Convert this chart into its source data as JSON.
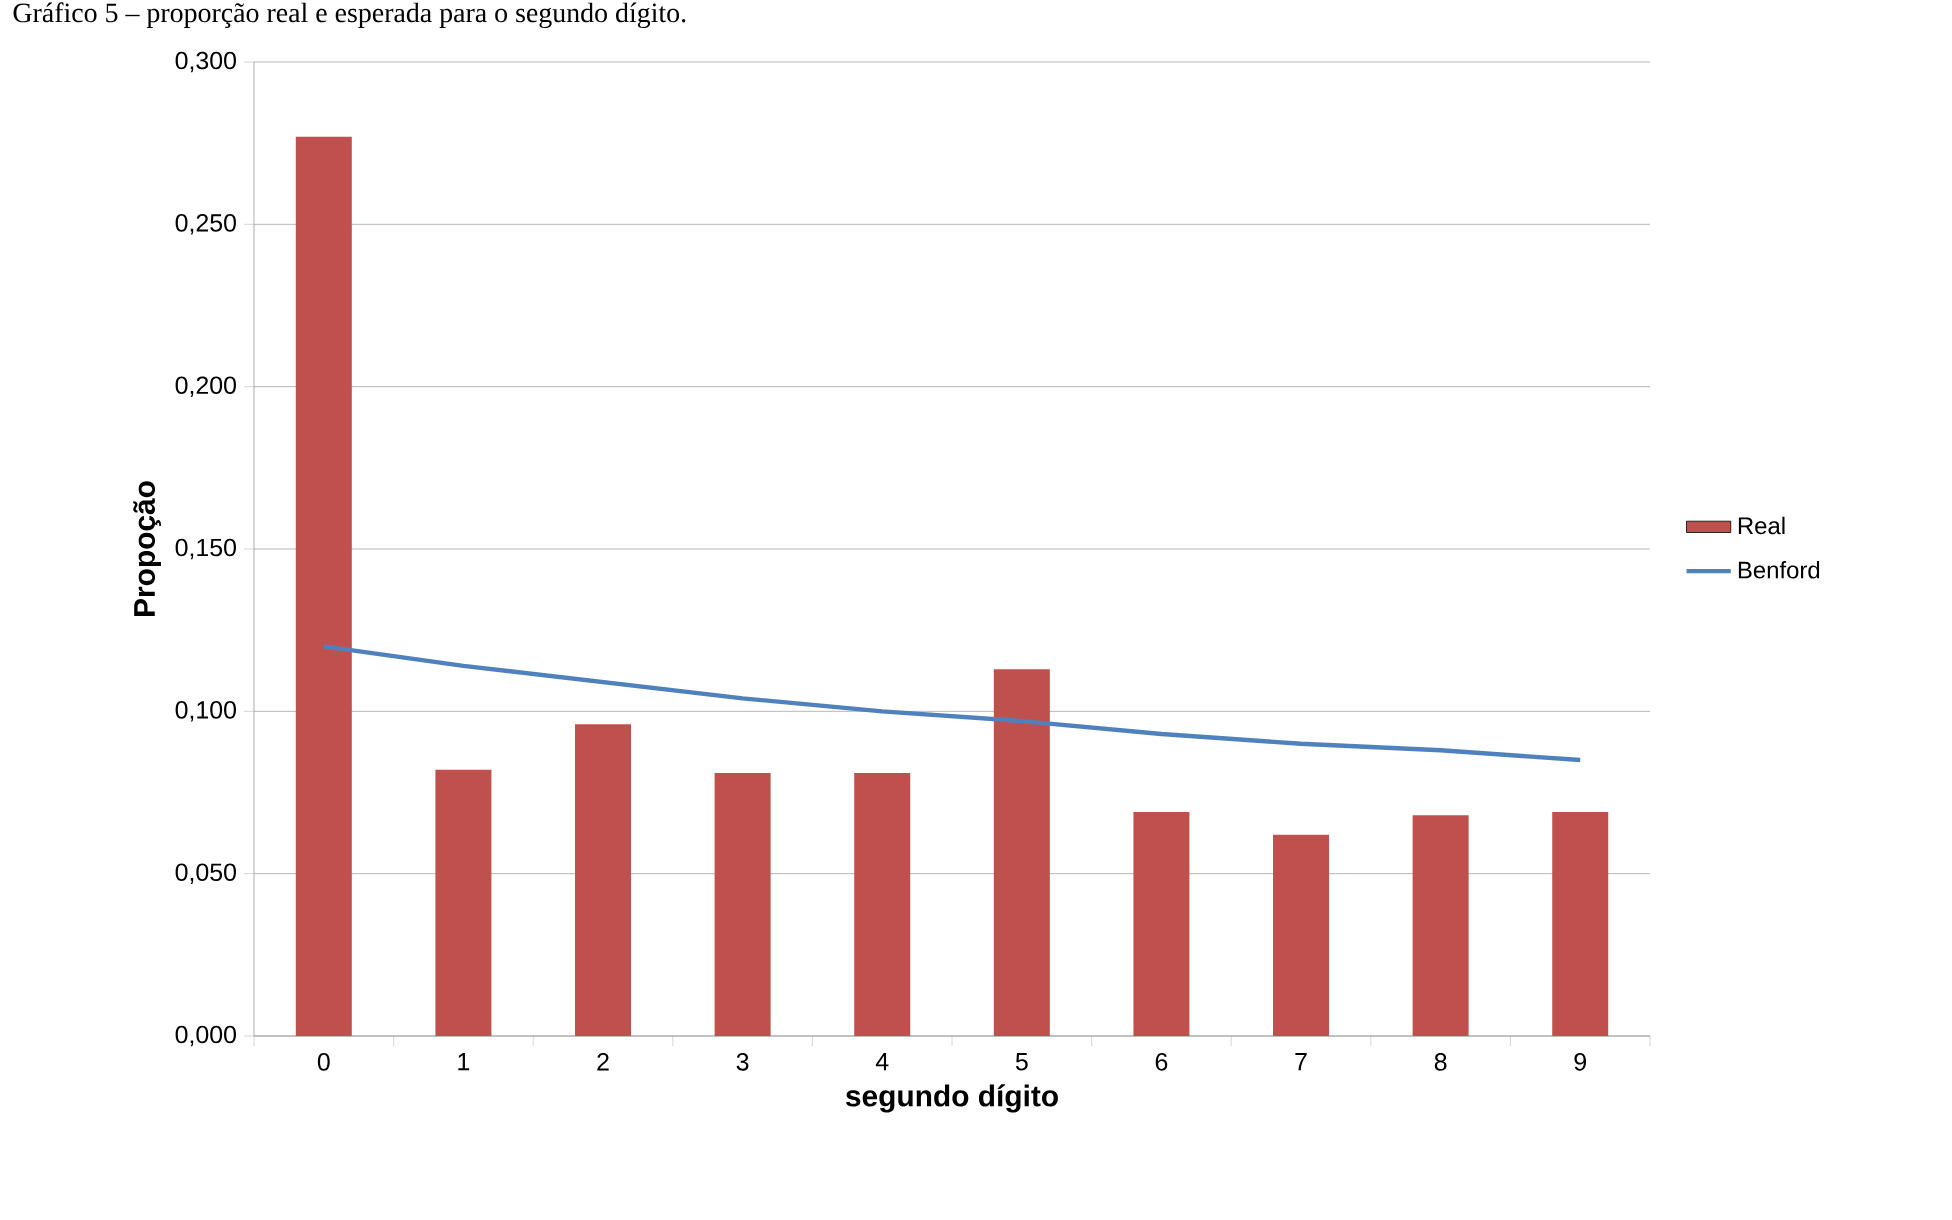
{
  "chart_data": {
    "type": "bar",
    "title": "Gráfico 5 – proporção real e esperada para o segundo dígito.",
    "xlabel": "segundo dígito",
    "ylabel": "Propoção",
    "categories": [
      "0",
      "1",
      "2",
      "3",
      "4",
      "5",
      "6",
      "7",
      "8",
      "9"
    ],
    "series": [
      {
        "name": "Real",
        "color": "#c0504d",
        "values": [
          0.277,
          0.082,
          0.096,
          0.081,
          0.081,
          0.113,
          0.069,
          0.062,
          0.068,
          0.069
        ]
      },
      {
        "name": "Benford",
        "type": "line",
        "color": "#4f81bd",
        "marker": "none",
        "values": [
          0.12,
          0.114,
          0.109,
          0.104,
          0.1,
          0.097,
          0.093,
          0.09,
          0.088,
          0.085
        ]
      }
    ],
    "ylim": [
      0,
      0.3
    ],
    "yticks": [
      {
        "value": 0,
        "label": "0,000"
      },
      {
        "value": 0.05,
        "label": "0,050"
      },
      {
        "value": 0.1,
        "label": "0,100"
      },
      {
        "value": 0.15,
        "label": "0,150"
      },
      {
        "value": 0.2,
        "label": "0,200"
      },
      {
        "value": 0.25,
        "label": "0,250"
      },
      {
        "value": 0.3,
        "label": "0,300"
      }
    ],
    "grid": "y",
    "legend": "right"
  }
}
